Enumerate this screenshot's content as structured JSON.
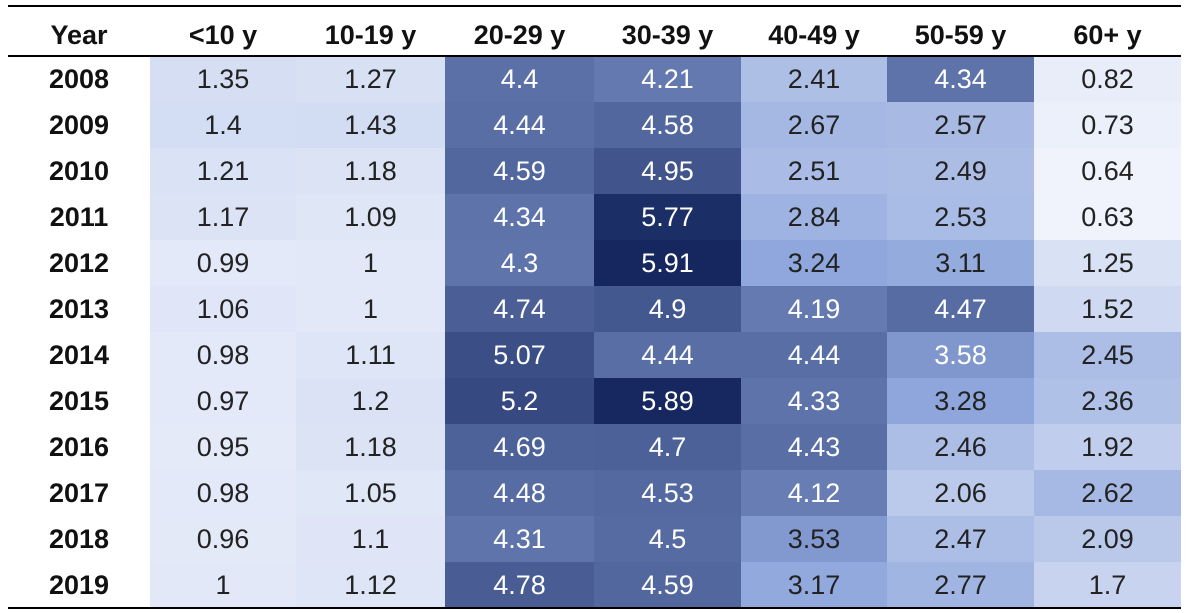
{
  "chart_data": {
    "type": "heatmap",
    "row_header": "Year",
    "columns": [
      "<10 y",
      "10-19 y",
      "20-29 y",
      "30-39 y",
      "40-49 y",
      "50-59 y",
      "60+ y"
    ],
    "rows": [
      "2008",
      "2009",
      "2010",
      "2011",
      "2012",
      "2013",
      "2014",
      "2015",
      "2016",
      "2017",
      "2018",
      "2019"
    ],
    "values": [
      [
        "1.35",
        "1.27",
        "4.4",
        "4.21",
        "2.41",
        "4.34",
        "0.82"
      ],
      [
        "1.4",
        "1.43",
        "4.44",
        "4.58",
        "2.67",
        "2.57",
        "0.73"
      ],
      [
        "1.21",
        "1.18",
        "4.59",
        "4.95",
        "2.51",
        "2.49",
        "0.64"
      ],
      [
        "1.17",
        "1.09",
        "4.34",
        "5.77",
        "2.84",
        "2.53",
        "0.63"
      ],
      [
        "0.99",
        "1",
        "4.3",
        "5.91",
        "3.24",
        "3.11",
        "1.25"
      ],
      [
        "1.06",
        "1",
        "4.74",
        "4.9",
        "4.19",
        "4.47",
        "1.52"
      ],
      [
        "0.98",
        "1.11",
        "5.07",
        "4.44",
        "4.44",
        "3.58",
        "2.45"
      ],
      [
        "0.97",
        "1.2",
        "5.2",
        "5.89",
        "4.33",
        "3.28",
        "2.36"
      ],
      [
        "0.95",
        "1.18",
        "4.69",
        "4.7",
        "4.43",
        "2.46",
        "1.92"
      ],
      [
        "0.98",
        "1.05",
        "4.48",
        "4.53",
        "4.12",
        "2.06",
        "2.62"
      ],
      [
        "0.96",
        "1.1",
        "4.31",
        "4.5",
        "3.53",
        "2.47",
        "2.09"
      ],
      [
        "1",
        "1.12",
        "4.78",
        "4.59",
        "3.17",
        "2.77",
        "1.7"
      ]
    ],
    "color_scale": {
      "low": "#f0f3fc",
      "mid": "#8ea6dc",
      "high": "#15275e"
    },
    "value_range": [
      0.63,
      5.91
    ]
  }
}
